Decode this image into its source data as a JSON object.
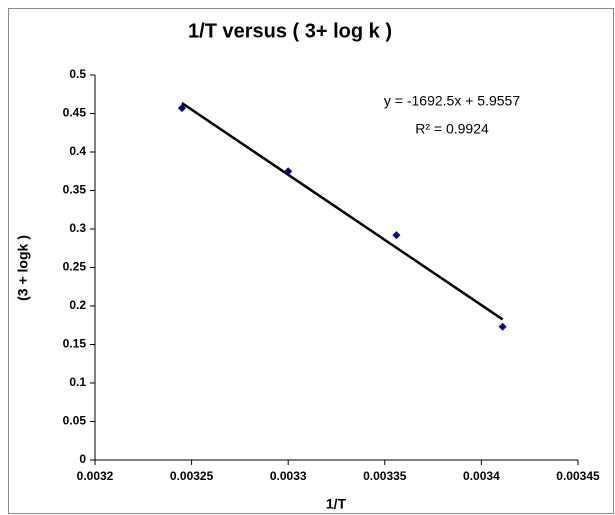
{
  "chart_data": {
    "type": "scatter",
    "title": "1/T versus ( 3+ log k )",
    "x_label": "1/T",
    "y_label": "(3 + logk )",
    "series": [
      {
        "name": "3+ log k",
        "color": "#000080",
        "x": [
          0.003245,
          0.0033,
          0.003356,
          0.003411
        ],
        "values": [
          0.457,
          0.375,
          0.292,
          0.173
        ]
      }
    ],
    "trendline": {
      "equation": "y = -1692.5x + 5.9557",
      "slope": -1692.5,
      "intercept": 5.9557,
      "r_squared": "R² = 0.9924",
      "color": "#000000"
    },
    "xlim": [
      0.0032,
      0.00345
    ],
    "xticks": [
      0.0032,
      0.00325,
      0.0033,
      0.00335,
      0.0034,
      0.00345
    ],
    "ylim": [
      0,
      0.5
    ],
    "yticks": [
      0,
      0.05,
      0.1,
      0.15,
      0.2,
      0.25,
      0.3,
      0.35,
      0.4,
      0.45,
      0.5
    ],
    "grid": false
  }
}
